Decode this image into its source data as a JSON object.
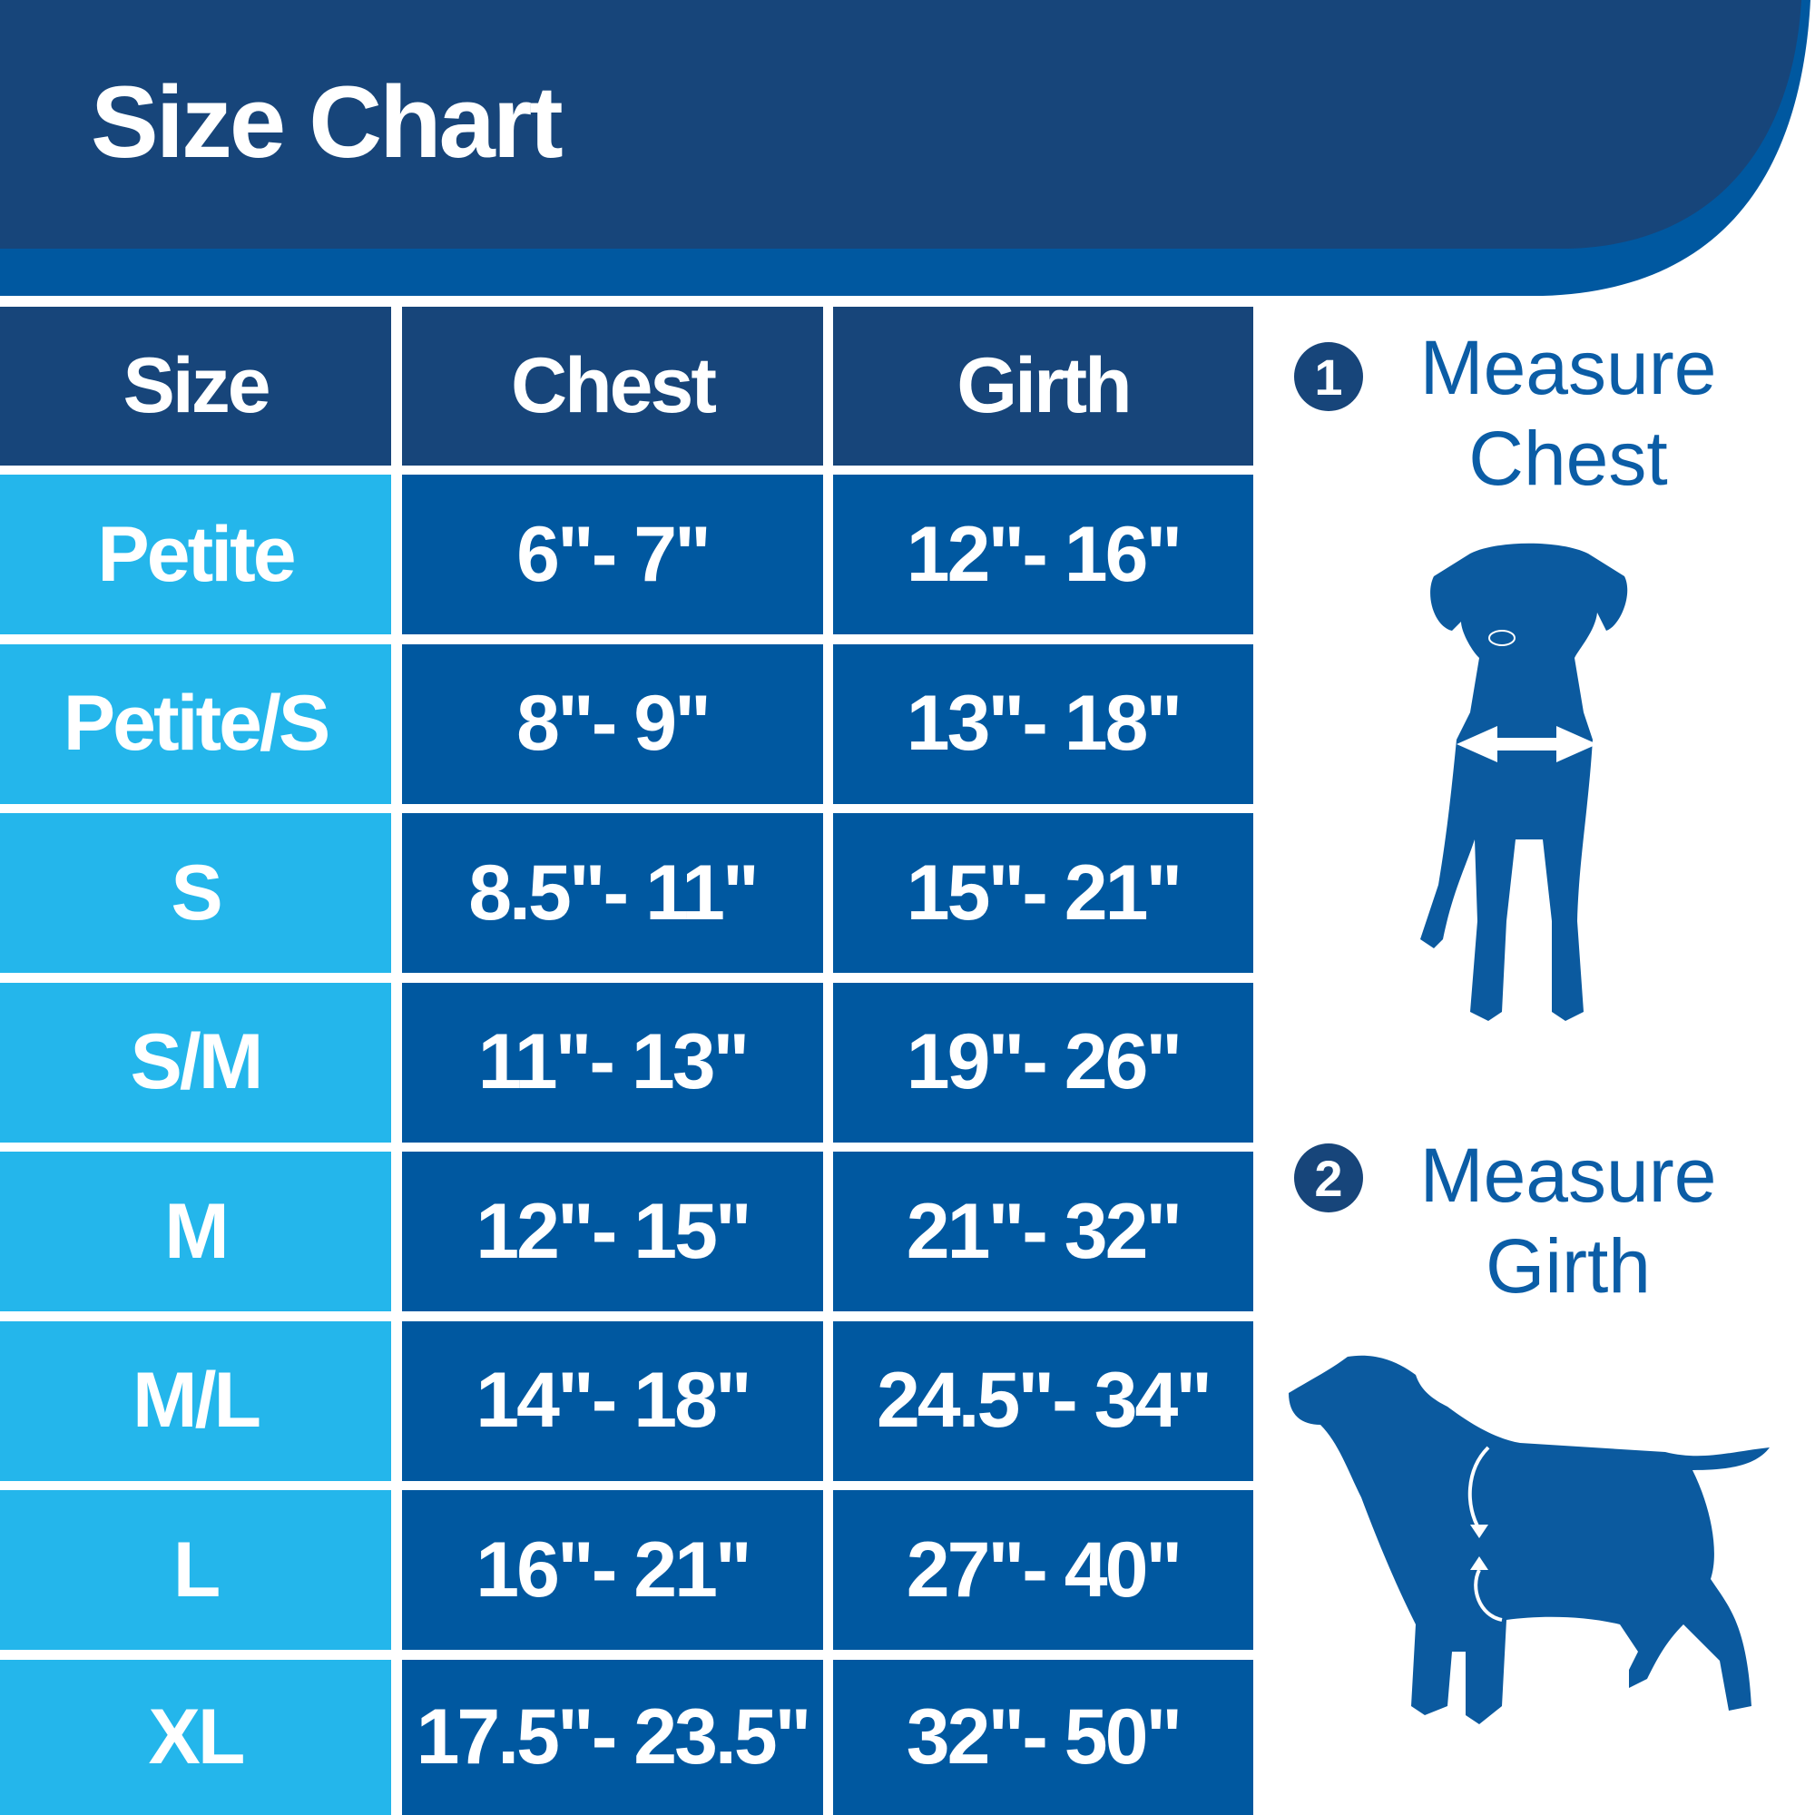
{
  "title": "Size Chart",
  "colors": {
    "header_navy": "#17457a",
    "band_blue": "#0058a0",
    "size_cell": "#24b6eb",
    "value_cell": "#0058a0",
    "text_blue": "#0b5da6"
  },
  "table": {
    "headers": [
      "Size",
      "Chest",
      "Girth"
    ],
    "rows": [
      {
        "size": "Petite",
        "chest": "6\"- 7\"",
        "girth": "12\"- 16\""
      },
      {
        "size": "Petite/S",
        "chest": "8\"- 9\"",
        "girth": "13\"- 18\""
      },
      {
        "size": "S",
        "chest": "8.5\"- 11\"",
        "girth": "15\"- 21\""
      },
      {
        "size": "S/M",
        "chest": "11\"- 13\"",
        "girth": "19\"- 26\""
      },
      {
        "size": "M",
        "chest": "12\"- 15\"",
        "girth": "21\"- 32\""
      },
      {
        "size": "M/L",
        "chest": "14\"- 18\"",
        "girth": "24.5\"- 34\""
      },
      {
        "size": "L",
        "chest": "16\"- 21\"",
        "girth": "27\"- 40\""
      },
      {
        "size": "XL",
        "chest": "17.5\"- 23.5\"",
        "girth": "32\"- 50\""
      }
    ]
  },
  "steps": [
    {
      "number": "1",
      "line1": "Measure",
      "line2": "Chest",
      "icon": "dog-front-chest-arrow-icon"
    },
    {
      "number": "2",
      "line1": "Measure",
      "line2": "Girth",
      "icon": "dog-side-girth-arrow-icon"
    }
  ]
}
